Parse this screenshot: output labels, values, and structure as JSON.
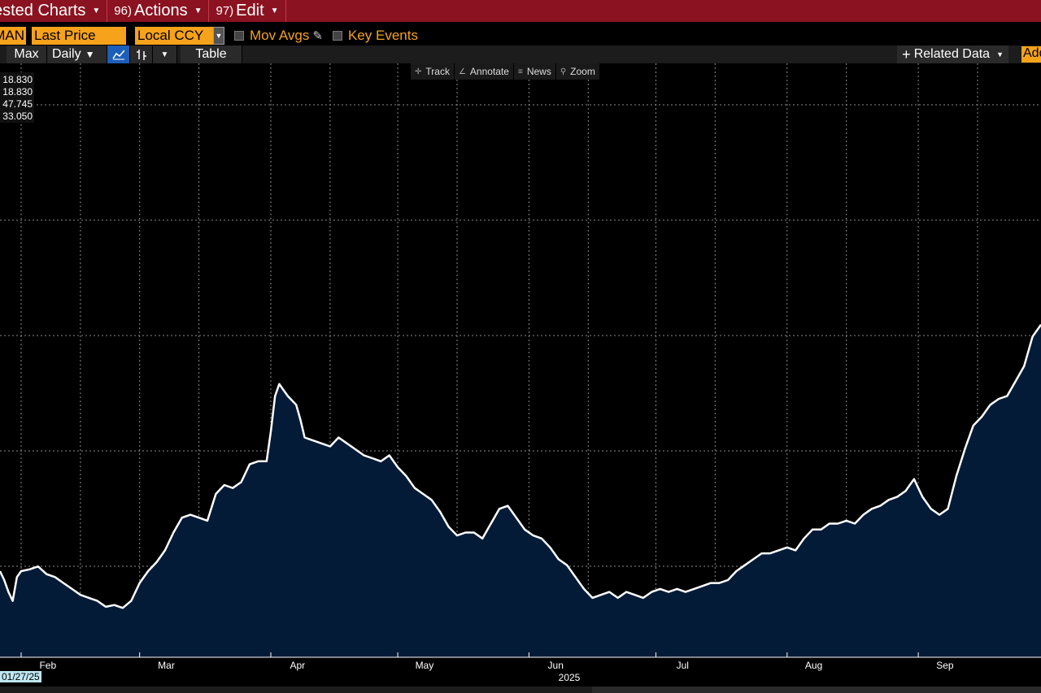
{
  "menubar": {
    "items": [
      {
        "num": "",
        "label": "ested Charts"
      },
      {
        "num": "96)",
        "label": "Actions"
      },
      {
        "num": "97)",
        "label": "Edit"
      }
    ]
  },
  "fields": {
    "ticker": "MAN",
    "price_field": "Last Price",
    "currency": "Local CCY",
    "mov_avgs": "Mov Avgs",
    "key_events": "Key Events"
  },
  "toolbar": {
    "range": "Max",
    "frequency": "Daily",
    "table": "Table",
    "related": "Related Data",
    "add": "Add"
  },
  "chart_tools": [
    "Track",
    "Annotate",
    "News",
    "Zoom"
  ],
  "stats": [
    "18.830",
    "18.830",
    "47.745",
    "33.050"
  ],
  "start_date": "01/27/25",
  "colors": {
    "menubar": "#8b1220",
    "accent_orange": "#f6a21b",
    "area_fill": "#041b38",
    "line": "#ffffff"
  },
  "chart_data": {
    "type": "area",
    "title": "",
    "xlabel": "",
    "ylabel": "",
    "year_label": "2025",
    "x_range": [
      "2025-01-27",
      "2025-09-30"
    ],
    "x_tick_labels": [
      {
        "label": "Feb",
        "date": "2025-02-01"
      },
      {
        "label": "Mar",
        "date": "2025-03-01"
      },
      {
        "label": "Apr",
        "date": "2025-04-01"
      },
      {
        "label": "May",
        "date": "2025-05-01"
      },
      {
        "label": "Jun",
        "date": "2025-06-01"
      },
      {
        "label": "Jul",
        "date": "2025-07-01"
      },
      {
        "label": "Aug",
        "date": "2025-08-01"
      },
      {
        "label": "Sep",
        "date": "2025-09-01"
      }
    ],
    "ylim": [
      0,
      100
    ],
    "grid": true,
    "series": [
      {
        "name": "",
        "points": [
          [
            "2025-01-27",
            14.5
          ],
          [
            "2025-01-28",
            13.0
          ],
          [
            "2025-01-29",
            11.0
          ],
          [
            "2025-01-30",
            9.5
          ],
          [
            "2025-01-31",
            13.5
          ],
          [
            "2025-02-01",
            14.5
          ],
          [
            "2025-02-03",
            14.8
          ],
          [
            "2025-02-05",
            15.3
          ],
          [
            "2025-02-07",
            14.0
          ],
          [
            "2025-02-09",
            13.5
          ],
          [
            "2025-02-11",
            12.5
          ],
          [
            "2025-02-13",
            11.5
          ],
          [
            "2025-02-15",
            10.5
          ],
          [
            "2025-02-17",
            10.0
          ],
          [
            "2025-02-19",
            9.5
          ],
          [
            "2025-02-21",
            8.5
          ],
          [
            "2025-02-23",
            8.8
          ],
          [
            "2025-02-25",
            8.3
          ],
          [
            "2025-02-27",
            9.5
          ],
          [
            "2025-03-01",
            12.5
          ],
          [
            "2025-03-03",
            14.5
          ],
          [
            "2025-03-05",
            16.0
          ],
          [
            "2025-03-07",
            18.0
          ],
          [
            "2025-03-09",
            21.0
          ],
          [
            "2025-03-11",
            23.5
          ],
          [
            "2025-03-13",
            24.0
          ],
          [
            "2025-03-15",
            23.5
          ],
          [
            "2025-03-17",
            23.0
          ],
          [
            "2025-03-19",
            27.5
          ],
          [
            "2025-03-21",
            29.0
          ],
          [
            "2025-03-23",
            28.5
          ],
          [
            "2025-03-25",
            29.5
          ],
          [
            "2025-03-27",
            32.5
          ],
          [
            "2025-03-29",
            33.0
          ],
          [
            "2025-03-31",
            33.0
          ],
          [
            "2025-04-01",
            38.0
          ],
          [
            "2025-04-02",
            44.0
          ],
          [
            "2025-04-03",
            46.0
          ],
          [
            "2025-04-04",
            45.0
          ],
          [
            "2025-04-05",
            44.0
          ],
          [
            "2025-04-07",
            42.5
          ],
          [
            "2025-04-08",
            40.0
          ],
          [
            "2025-04-09",
            37.0
          ],
          [
            "2025-04-11",
            36.5
          ],
          [
            "2025-04-13",
            36.0
          ],
          [
            "2025-04-15",
            35.5
          ],
          [
            "2025-04-17",
            37.0
          ],
          [
            "2025-04-19",
            36.0
          ],
          [
            "2025-04-21",
            35.0
          ],
          [
            "2025-04-23",
            34.0
          ],
          [
            "2025-04-25",
            33.5
          ],
          [
            "2025-04-27",
            33.0
          ],
          [
            "2025-04-29",
            34.0
          ],
          [
            "2025-05-01",
            32.0
          ],
          [
            "2025-05-03",
            30.5
          ],
          [
            "2025-05-05",
            28.5
          ],
          [
            "2025-05-07",
            27.5
          ],
          [
            "2025-05-09",
            26.5
          ],
          [
            "2025-05-11",
            24.5
          ],
          [
            "2025-05-13",
            22.0
          ],
          [
            "2025-05-15",
            20.5
          ],
          [
            "2025-05-17",
            21.0
          ],
          [
            "2025-05-19",
            21.0
          ],
          [
            "2025-05-21",
            20.0
          ],
          [
            "2025-05-23",
            22.5
          ],
          [
            "2025-05-25",
            25.0
          ],
          [
            "2025-05-27",
            25.5
          ],
          [
            "2025-05-29",
            23.5
          ],
          [
            "2025-05-31",
            21.5
          ],
          [
            "2025-06-02",
            20.5
          ],
          [
            "2025-06-04",
            20.0
          ],
          [
            "2025-06-06",
            18.5
          ],
          [
            "2025-06-08",
            16.5
          ],
          [
            "2025-06-10",
            15.5
          ],
          [
            "2025-06-12",
            13.5
          ],
          [
            "2025-06-14",
            11.5
          ],
          [
            "2025-06-16",
            10.0
          ],
          [
            "2025-06-18",
            10.5
          ],
          [
            "2025-06-20",
            11.0
          ],
          [
            "2025-06-22",
            10.0
          ],
          [
            "2025-06-24",
            11.0
          ],
          [
            "2025-06-26",
            10.5
          ],
          [
            "2025-06-28",
            10.0
          ],
          [
            "2025-06-30",
            11.0
          ],
          [
            "2025-07-02",
            11.5
          ],
          [
            "2025-07-04",
            11.0
          ],
          [
            "2025-07-06",
            11.5
          ],
          [
            "2025-07-08",
            11.0
          ],
          [
            "2025-07-10",
            11.5
          ],
          [
            "2025-07-12",
            12.0
          ],
          [
            "2025-07-14",
            12.5
          ],
          [
            "2025-07-16",
            12.5
          ],
          [
            "2025-07-18",
            13.0
          ],
          [
            "2025-07-20",
            14.5
          ],
          [
            "2025-07-22",
            15.5
          ],
          [
            "2025-07-24",
            16.5
          ],
          [
            "2025-07-26",
            17.5
          ],
          [
            "2025-07-28",
            17.5
          ],
          [
            "2025-07-30",
            18.0
          ],
          [
            "2025-08-01",
            18.5
          ],
          [
            "2025-08-03",
            18.0
          ],
          [
            "2025-08-05",
            20.0
          ],
          [
            "2025-08-07",
            21.5
          ],
          [
            "2025-08-09",
            21.5
          ],
          [
            "2025-08-11",
            22.5
          ],
          [
            "2025-08-13",
            22.5
          ],
          [
            "2025-08-15",
            23.0
          ],
          [
            "2025-08-17",
            22.5
          ],
          [
            "2025-08-19",
            24.0
          ],
          [
            "2025-08-21",
            25.0
          ],
          [
            "2025-08-23",
            25.5
          ],
          [
            "2025-08-25",
            26.5
          ],
          [
            "2025-08-27",
            27.0
          ],
          [
            "2025-08-29",
            28.0
          ],
          [
            "2025-08-31",
            30.0
          ],
          [
            "2025-09-02",
            27.0
          ],
          [
            "2025-09-04",
            25.0
          ],
          [
            "2025-09-06",
            24.0
          ],
          [
            "2025-09-08",
            25.0
          ],
          [
            "2025-09-10",
            30.5
          ],
          [
            "2025-09-12",
            35.0
          ],
          [
            "2025-09-14",
            39.0
          ],
          [
            "2025-09-16",
            40.5
          ],
          [
            "2025-09-18",
            42.5
          ],
          [
            "2025-09-20",
            43.5
          ],
          [
            "2025-09-22",
            44.0
          ],
          [
            "2025-09-24",
            46.5
          ],
          [
            "2025-09-26",
            49.0
          ],
          [
            "2025-09-28",
            54.0
          ],
          [
            "2025-09-30",
            56.0
          ]
        ]
      }
    ]
  }
}
